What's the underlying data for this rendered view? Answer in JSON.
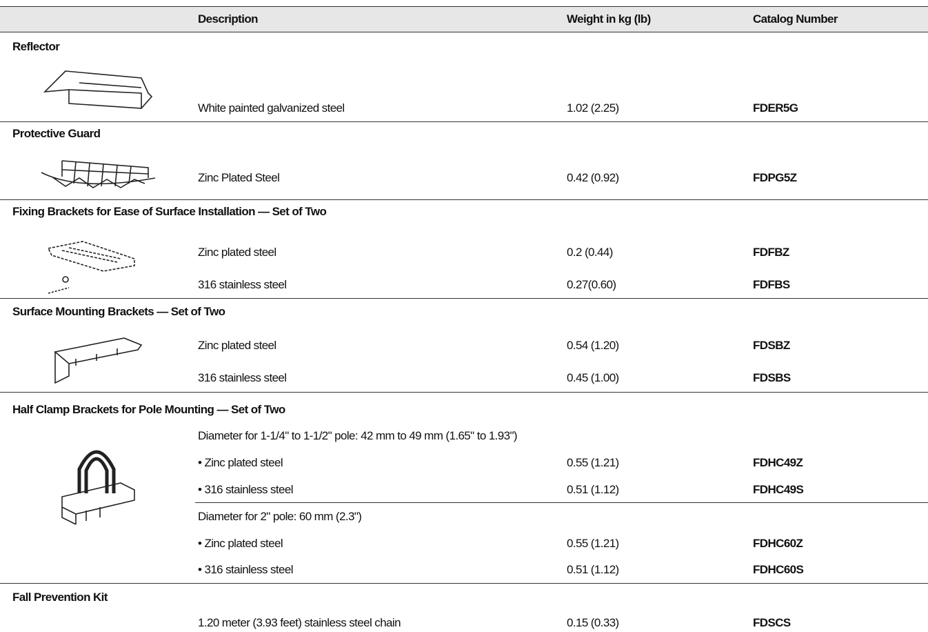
{
  "table": {
    "columns": [
      "Description",
      "Weight in kg (lb)",
      "Catalog Number"
    ],
    "sections": [
      {
        "title": "Reflector",
        "rows": [
          [
            "White painted galvanized steel",
            "1.02 (2.25)",
            "FDER5G"
          ]
        ]
      },
      {
        "title": "Protective Guard",
        "rows": [
          [
            "Zinc Plated Steel",
            "0.42 (0.92)",
            "FDPG5Z"
          ]
        ]
      },
      {
        "title": "Fixing Brackets for Ease of Surface Installation — Set of Two",
        "rows": [
          [
            "Zinc plated steel",
            "0.2 (0.44)",
            "FDFBZ"
          ],
          [
            "316 stainless steel",
            "0.27(0.60)",
            "FDFBS"
          ]
        ]
      },
      {
        "title": "Surface Mounting Brackets — Set of Two",
        "rows": [
          [
            "Zinc plated steel",
            "0.54 (1.20)",
            "FDSBZ"
          ],
          [
            "316 stainless steel",
            "0.45 (1.00)",
            "FDSBS"
          ]
        ]
      },
      {
        "title": "Half Clamp Brackets for Pole Mounting — Set of Two",
        "groups": [
          {
            "heading": "Diameter for 1-1/4\" to 1-1/2\" pole: 42 mm to 49 mm (1.65\" to 1.93\")",
            "rows": [
              [
                "• Zinc plated steel",
                "0.55 (1.21)",
                "FDHC49Z"
              ],
              [
                "• 316 stainless steel",
                "0.51 (1.12)",
                "FDHC49S"
              ]
            ]
          },
          {
            "heading": "Diameter for 2\" pole: 60 mm (2.3\")",
            "rows": [
              [
                "• Zinc plated steel",
                "0.55 (1.21)",
                "FDHC60Z"
              ],
              [
                "• 316 stainless steel",
                "0.51 (1.12)",
                "FDHC60S"
              ]
            ]
          }
        ]
      },
      {
        "title": "Fall Prevention Kit",
        "rows": [
          [
            "1.20 meter (3.93 feet) stainless steel chain",
            "0.15 (0.33)",
            "FDSCS"
          ]
        ]
      }
    ]
  }
}
